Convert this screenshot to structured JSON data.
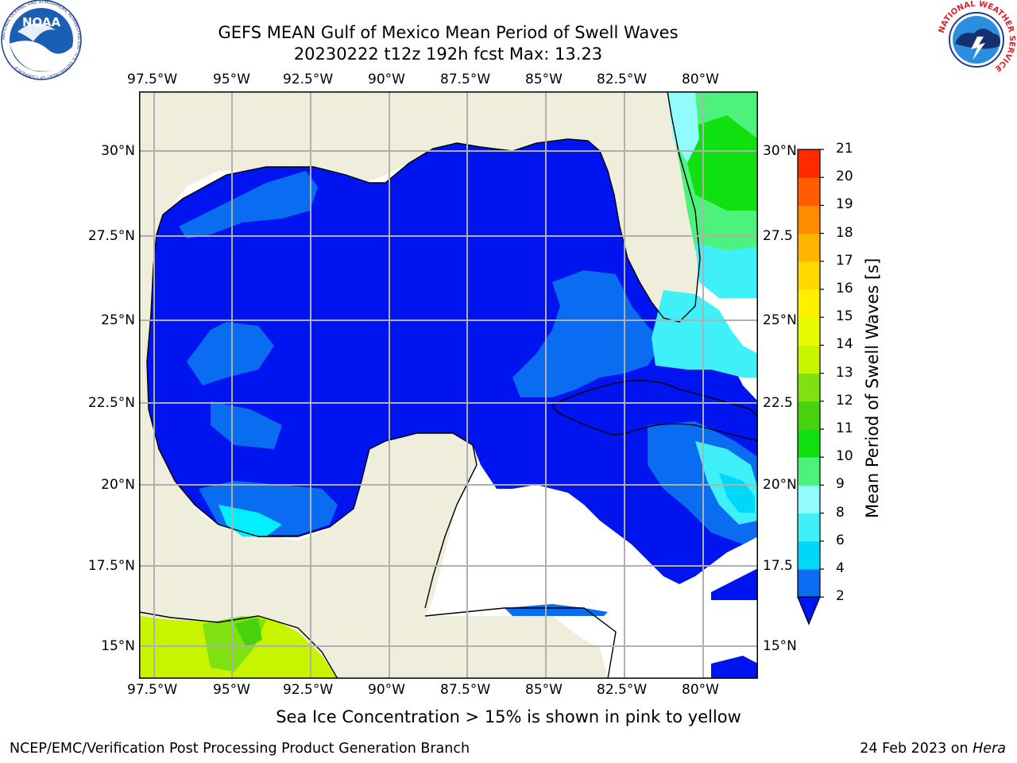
{
  "title": {
    "line1": "GEFS MEAN Gulf of Mexico Mean Period of Swell Waves",
    "line2": "20230222 t12z 192h fcst   Max: 13.23"
  },
  "logos": {
    "noaa_text": "NOAA",
    "noaa_ring": "NATIONAL OCEANIC AND ATMOSPHERIC ADMINISTRATION · U.S. DEPARTMENT OF COMMERCE",
    "nws_ring": "NATIONAL WEATHER SERVICE"
  },
  "axes": {
    "lon_labels": [
      "97.5°W",
      "95°W",
      "92.5°W",
      "90°W",
      "87.5°W",
      "85°W",
      "82.5°W",
      "80°W"
    ],
    "lat_labels": [
      "30°N",
      "27.5°N",
      "25°N",
      "22.5°N",
      "20°N",
      "17.5°N",
      "15°N"
    ],
    "lat_labels_right": [
      "30°N",
      "27.5",
      "25°N",
      "22.5",
      "20°N",
      "17.5",
      "15°N"
    ]
  },
  "colorbar": {
    "title": "Mean Period of Swell Waves [s]",
    "levels": [
      2,
      4,
      6,
      8,
      9,
      10,
      11,
      12,
      13,
      14,
      15,
      16,
      17,
      18,
      19,
      20,
      21
    ],
    "colors": [
      "#0a6cf0",
      "#00d8f8",
      "#40f0f8",
      "#90fcfc",
      "#4cf27c",
      "#10e010",
      "#46d30e",
      "#7fe210",
      "#c8f400",
      "#e8fa00",
      "#fff000",
      "#ffd800",
      "#ffb400",
      "#ff8c00",
      "#ff5c00",
      "#ff2a00"
    ],
    "under_color": "#0014f0"
  },
  "note": "Sea Ice Concentration > 15% is shown in pink to yellow",
  "footer": {
    "left": "NCEP/EMC/Verification Post Processing Product Generation Branch",
    "right_prefix": "24 Feb 2023 on ",
    "right_host": "Hera"
  },
  "map_colors": {
    "land": "#efeedd",
    "missing": "#ffffff",
    "grid": "#b0b0b0"
  }
}
